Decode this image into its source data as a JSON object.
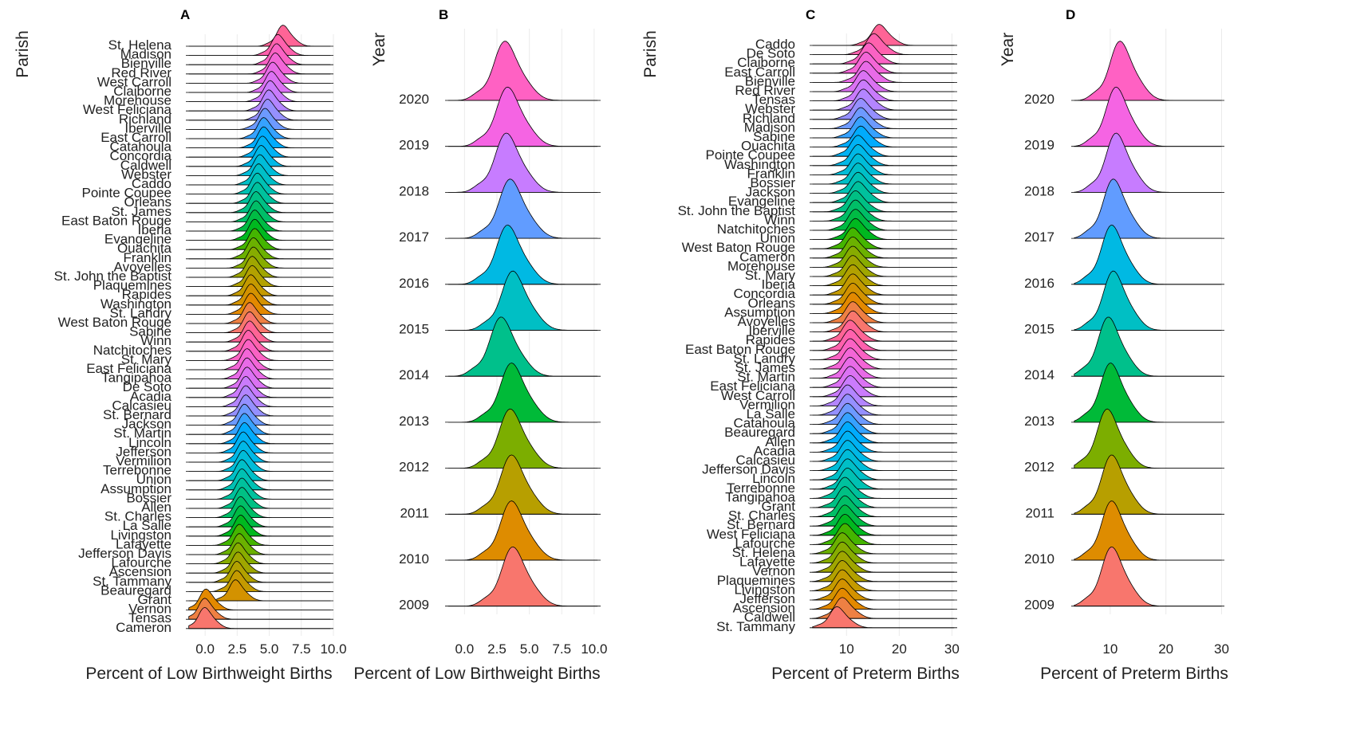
{
  "chart_data": [
    {
      "panel": "A",
      "type": "ridgeline",
      "ylabel": "Parish",
      "xlabel": "Percent of Low Birthweight Births",
      "xlim": [
        -1.5,
        10
      ],
      "xticks": [
        0,
        2.5,
        5,
        7.5,
        10
      ],
      "xtick_labels": [
        "0.0",
        "2.5",
        "5.0",
        "7.5",
        "10.0"
      ],
      "grid": true,
      "categories": [
        "St. Helena",
        "Madison",
        "Bienville",
        "Red River",
        "West Carroll",
        "Claiborne",
        "Morehouse",
        "West Feliciana",
        "Richland",
        "Iberville",
        "East Carroll",
        "Catahoula",
        "Concordia",
        "Caldwell",
        "Webster",
        "Caddo",
        "Pointe Coupee",
        "Orleans",
        "St. James",
        "East Baton Rouge",
        "Iberia",
        "Evangeline",
        "Ouachita",
        "Franklin",
        "Avoyelles",
        "St. John the Baptist",
        "Plaquemines",
        "Rapides",
        "Washington",
        "St. Landry",
        "West Baton Rouge",
        "Sabine",
        "Winn",
        "Natchitoches",
        "St. Mary",
        "East Feliciana",
        "Tangipahoa",
        "De Soto",
        "Acadia",
        "Calcasieu",
        "St. Bernard",
        "Jackson",
        "St. Martin",
        "Lincoln",
        "Jefferson",
        "Vermilion",
        "Terrebonne",
        "Union",
        "Assumption",
        "Bossier",
        "Allen",
        "St. Charles",
        "La Salle",
        "Livingston",
        "Lafayette",
        "Jefferson Davis",
        "Lafourche",
        "Ascension",
        "St. Tammany",
        "Beauregard",
        "Grant",
        "Vernon",
        "Tensas",
        "Cameron"
      ],
      "modes": [
        6.0,
        5.6,
        5.5,
        5.4,
        5.2,
        5.1,
        5.0,
        4.9,
        4.8,
        4.6,
        4.5,
        4.5,
        4.4,
        4.3,
        4.2,
        4.1,
        4.0,
        4.0,
        3.9,
        3.9,
        3.8,
        3.8,
        3.8,
        3.7,
        3.7,
        3.6,
        3.6,
        3.5,
        3.5,
        3.5,
        3.4,
        3.4,
        3.4,
        3.3,
        3.3,
        3.2,
        3.2,
        3.2,
        3.1,
        3.1,
        3.1,
        3.0,
        3.0,
        3.0,
        2.9,
        2.9,
        2.9,
        2.8,
        2.8,
        2.8,
        2.8,
        2.7,
        2.7,
        2.7,
        2.6,
        2.6,
        2.5,
        2.5,
        2.4,
        2.4,
        2.3,
        0.0,
        -0.1,
        -0.1
      ]
    },
    {
      "panel": "B",
      "type": "ridgeline",
      "ylabel": "Year",
      "xlabel": "Percent of Low Birthweight Births",
      "xlim": [
        -1.5,
        10.5
      ],
      "xticks": [
        0,
        2.5,
        5,
        7.5,
        10
      ],
      "xtick_labels": [
        "0.0",
        "2.5",
        "5.0",
        "7.5",
        "10.0"
      ],
      "grid": true,
      "categories": [
        "2020",
        "2019",
        "2018",
        "2017",
        "2016",
        "2015",
        "2014",
        "2013",
        "2012",
        "2011",
        "2010",
        "2009"
      ],
      "modes": [
        3.0,
        3.2,
        3.1,
        3.4,
        3.2,
        3.6,
        2.7,
        3.5,
        3.4,
        3.5,
        3.5,
        3.6
      ]
    },
    {
      "panel": "C",
      "type": "ridgeline",
      "ylabel": "Parish",
      "xlabel": "Percent of Preterm Births",
      "xlim": [
        3,
        31
      ],
      "xticks": [
        10,
        20,
        30
      ],
      "xtick_labels": [
        "10",
        "20",
        "30"
      ],
      "grid": true,
      "categories": [
        "Caddo",
        "De Soto",
        "Claiborne",
        "East Carroll",
        "Bienville",
        "Red River",
        "Tensas",
        "Webster",
        "Richland",
        "Madison",
        "Sabine",
        "Ouachita",
        "Pointe Coupee",
        "Washington",
        "Franklin",
        "Bossier",
        "Jackson",
        "Evangeline",
        "St. John the Baptist",
        "Winn",
        "Natchitoches",
        "Union",
        "West Baton Rouge",
        "Cameron",
        "Morehouse",
        "St. Mary",
        "Iberia",
        "Concordia",
        "Orleans",
        "Assumption",
        "Avoyelles",
        "Iberville",
        "Rapides",
        "East Baton Rouge",
        "St. Landry",
        "St. James",
        "St. Martin",
        "East Feliciana",
        "West Carroll",
        "Vermilion",
        "La Salle",
        "Catahoula",
        "Beauregard",
        "Allen",
        "Acadia",
        "Calcasieu",
        "Jefferson Davis",
        "Lincoln",
        "Terrebonne",
        "Tangipahoa",
        "Grant",
        "St. Charles",
        "St. Bernard",
        "West Feliciana",
        "Lafourche",
        "St. Helena",
        "Lafayette",
        "Vernon",
        "Plaquemines",
        "Livingston",
        "Jefferson",
        "Ascension",
        "Caldwell",
        "St. Tammany"
      ],
      "modes": [
        16,
        15,
        14,
        13.5,
        13.5,
        13,
        13,
        13,
        12.5,
        12.5,
        12.5,
        12.5,
        12,
        12,
        12,
        12,
        12,
        12,
        11.5,
        11.5,
        11.5,
        11.5,
        11,
        11,
        11,
        11,
        11,
        11,
        11,
        11,
        11,
        11,
        10.5,
        10.5,
        10.5,
        10.5,
        10.5,
        10.5,
        10.5,
        10,
        10,
        10,
        10,
        10,
        10,
        10,
        10,
        10,
        10,
        9.5,
        9.5,
        9.5,
        9.5,
        9.5,
        9.5,
        9,
        9,
        9,
        9,
        9,
        9,
        9,
        9,
        8
      ]
    },
    {
      "panel": "D",
      "type": "ridgeline",
      "ylabel": "Year",
      "xlabel": "Percent of Preterm Births",
      "xlim": [
        3,
        30.5
      ],
      "xticks": [
        10,
        20,
        30
      ],
      "xtick_labels": [
        "10",
        "20",
        "30"
      ],
      "grid": true,
      "categories": [
        "2020",
        "2019",
        "2018",
        "2017",
        "2016",
        "2015",
        "2014",
        "2013",
        "2012",
        "2011",
        "2010",
        "2009"
      ],
      "modes": [
        11.5,
        10.8,
        10.8,
        10.3,
        10.0,
        10.3,
        9.4,
        9.8,
        9.2,
        10.0,
        10.0,
        10.0
      ]
    }
  ],
  "colors": {
    "palette64": [
      "#F8766D",
      "#EE8043",
      "#E38900",
      "#D39200",
      "#C49A00",
      "#B2A100",
      "#9FA600",
      "#87AC00",
      "#6BB100",
      "#44B500",
      "#00B81F",
      "#00BB44",
      "#00BE67",
      "#00C084",
      "#00C19D",
      "#00C1B3",
      "#00BFC7",
      "#00BCD8",
      "#00B8E7",
      "#00B2F4",
      "#00ABFD",
      "#36A2FF",
      "#6D9AFF",
      "#9590FF",
      "#B385FF",
      "#CA7BFC",
      "#DB72F3",
      "#E86BE7",
      "#F366D7",
      "#FA62C4",
      "#FF61AD",
      "#FF6496"
    ],
    "palette12": [
      "#FF61C3",
      "#F564E3",
      "#C77CFF",
      "#619CFF",
      "#00B9E3",
      "#00BFC4",
      "#00C08B",
      "#00BA38",
      "#7CAE00",
      "#B79F00",
      "#DE8C00",
      "#F8766D"
    ]
  }
}
